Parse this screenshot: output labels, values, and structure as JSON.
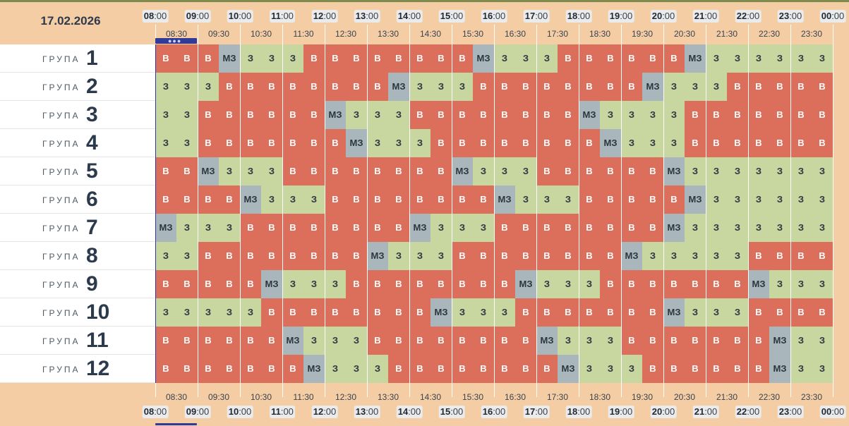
{
  "date": "17.02.2026",
  "group_label": "ГРУПА",
  "hours": [
    {
      "h": "08",
      "m": ":00"
    },
    {
      "h": "09",
      "m": ":00"
    },
    {
      "h": "10",
      "m": ":00"
    },
    {
      "h": "11",
      "m": ":00"
    },
    {
      "h": "12",
      "m": ":00"
    },
    {
      "h": "13",
      "m": ":00"
    },
    {
      "h": "14",
      "m": ":00"
    },
    {
      "h": "15",
      "m": ":00"
    },
    {
      "h": "16",
      "m": ":00"
    },
    {
      "h": "17",
      "m": ":00"
    },
    {
      "h": "18",
      "m": ":00"
    },
    {
      "h": "19",
      "m": ":00"
    },
    {
      "h": "20",
      "m": ":00"
    },
    {
      "h": "21",
      "m": ":00"
    },
    {
      "h": "22",
      "m": ":00"
    },
    {
      "h": "23",
      "m": ":00"
    },
    {
      "h": "00",
      "m": ":00"
    }
  ],
  "half_hours": [
    "08:30",
    "09:30",
    "10:30",
    "11:30",
    "12:30",
    "13:30",
    "14:30",
    "15:30",
    "16:30",
    "17:30",
    "18:30",
    "19:30",
    "20:30",
    "21:30",
    "22:30",
    "23:30"
  ],
  "status_labels": {
    "B": "В",
    "Z": "З",
    "M": "МЗ"
  },
  "status_colors": {
    "B": "#dc6e5c",
    "Z": "#c8d6a0",
    "M": "#a9b7bd"
  },
  "current_time_marker_icon": "ellipsis-icon",
  "groups": [
    {
      "number": "1",
      "cells": [
        "B",
        "B",
        "B",
        "M",
        "Z",
        "Z",
        "Z",
        "B",
        "B",
        "B",
        "B",
        "B",
        "B",
        "B",
        "B",
        "M",
        "Z",
        "Z",
        "Z",
        "B",
        "B",
        "B",
        "B",
        "B",
        "B",
        "M",
        "Z",
        "Z",
        "Z",
        "Z",
        "Z",
        "Z"
      ]
    },
    {
      "number": "2",
      "cells": [
        "Z",
        "Z",
        "Z",
        "B",
        "B",
        "B",
        "B",
        "B",
        "B",
        "B",
        "B",
        "M",
        "Z",
        "Z",
        "Z",
        "B",
        "B",
        "B",
        "B",
        "B",
        "B",
        "B",
        "B",
        "M",
        "Z",
        "Z",
        "Z",
        "B",
        "B",
        "B",
        "B",
        "B"
      ]
    },
    {
      "number": "3",
      "cells": [
        "Z",
        "Z",
        "B",
        "B",
        "B",
        "B",
        "B",
        "B",
        "M",
        "Z",
        "Z",
        "Z",
        "B",
        "B",
        "B",
        "B",
        "B",
        "B",
        "B",
        "B",
        "M",
        "Z",
        "Z",
        "Z",
        "Z",
        "B",
        "B",
        "B",
        "B",
        "B",
        "B",
        "B"
      ]
    },
    {
      "number": "4",
      "cells": [
        "Z",
        "Z",
        "B",
        "B",
        "B",
        "B",
        "B",
        "B",
        "B",
        "M",
        "Z",
        "Z",
        "Z",
        "B",
        "B",
        "B",
        "B",
        "B",
        "B",
        "B",
        "B",
        "M",
        "Z",
        "Z",
        "Z",
        "B",
        "B",
        "B",
        "B",
        "B",
        "B",
        "B"
      ]
    },
    {
      "number": "5",
      "cells": [
        "B",
        "B",
        "M",
        "Z",
        "Z",
        "Z",
        "B",
        "B",
        "B",
        "B",
        "B",
        "B",
        "B",
        "B",
        "M",
        "Z",
        "Z",
        "Z",
        "B",
        "B",
        "B",
        "B",
        "B",
        "B",
        "M",
        "Z",
        "Z",
        "Z",
        "Z",
        "Z",
        "Z",
        "Z"
      ]
    },
    {
      "number": "6",
      "cells": [
        "B",
        "B",
        "B",
        "B",
        "M",
        "Z",
        "Z",
        "Z",
        "B",
        "B",
        "B",
        "B",
        "B",
        "B",
        "B",
        "B",
        "M",
        "Z",
        "Z",
        "Z",
        "B",
        "B",
        "B",
        "B",
        "B",
        "M",
        "Z",
        "Z",
        "Z",
        "Z",
        "Z",
        "Z"
      ]
    },
    {
      "number": "7",
      "cells": [
        "M",
        "Z",
        "Z",
        "Z",
        "B",
        "B",
        "B",
        "B",
        "B",
        "B",
        "B",
        "B",
        "M",
        "Z",
        "Z",
        "Z",
        "B",
        "B",
        "B",
        "B",
        "B",
        "B",
        "B",
        "B",
        "M",
        "Z",
        "Z",
        "Z",
        "Z",
        "Z",
        "Z",
        "Z"
      ]
    },
    {
      "number": "8",
      "cells": [
        "Z",
        "Z",
        "B",
        "B",
        "B",
        "B",
        "B",
        "B",
        "B",
        "B",
        "M",
        "Z",
        "Z",
        "Z",
        "B",
        "B",
        "B",
        "B",
        "B",
        "B",
        "B",
        "B",
        "M",
        "Z",
        "Z",
        "Z",
        "Z",
        "Z",
        "B",
        "B",
        "B",
        "B"
      ]
    },
    {
      "number": "9",
      "cells": [
        "B",
        "B",
        "B",
        "B",
        "B",
        "M",
        "Z",
        "Z",
        "Z",
        "B",
        "B",
        "B",
        "B",
        "B",
        "B",
        "B",
        "B",
        "M",
        "Z",
        "Z",
        "Z",
        "B",
        "B",
        "B",
        "B",
        "B",
        "B",
        "B",
        "M",
        "Z",
        "Z",
        "Z"
      ]
    },
    {
      "number": "10",
      "cells": [
        "Z",
        "Z",
        "Z",
        "Z",
        "Z",
        "B",
        "B",
        "B",
        "B",
        "B",
        "B",
        "B",
        "B",
        "M",
        "Z",
        "Z",
        "Z",
        "B",
        "B",
        "B",
        "B",
        "B",
        "B",
        "B",
        "M",
        "Z",
        "Z",
        "Z",
        "B",
        "B",
        "B",
        "B"
      ]
    },
    {
      "number": "11",
      "cells": [
        "B",
        "B",
        "B",
        "B",
        "B",
        "B",
        "M",
        "Z",
        "Z",
        "Z",
        "B",
        "B",
        "B",
        "B",
        "B",
        "B",
        "B",
        "B",
        "M",
        "Z",
        "Z",
        "Z",
        "B",
        "B",
        "B",
        "B",
        "B",
        "B",
        "B",
        "M",
        "Z",
        "Z"
      ]
    },
    {
      "number": "12",
      "cells": [
        "B",
        "B",
        "B",
        "B",
        "B",
        "B",
        "B",
        "M",
        "Z",
        "Z",
        "Z",
        "B",
        "B",
        "B",
        "B",
        "B",
        "B",
        "B",
        "B",
        "M",
        "Z",
        "Z",
        "Z",
        "B",
        "B",
        "B",
        "B",
        "B",
        "B",
        "M",
        "Z",
        "Z"
      ]
    }
  ]
}
